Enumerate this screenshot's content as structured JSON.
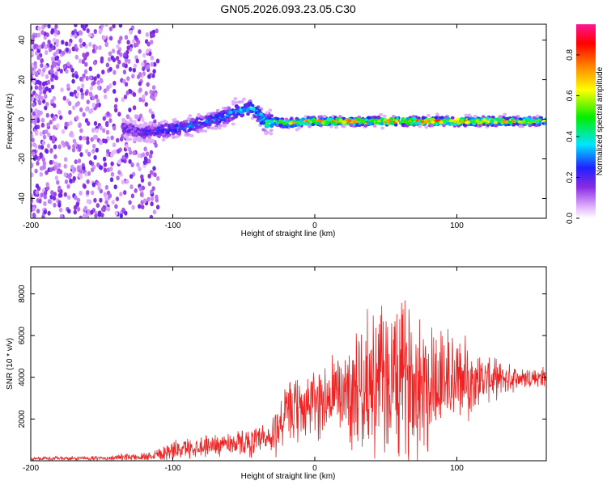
{
  "chart_data": [
    {
      "type": "heatmap",
      "title": "GN05.2026.093.23.05.C30",
      "xlabel": "Height of straight line (km)",
      "ylabel": "Frequency (Hz)",
      "xlim": [
        -200,
        163
      ],
      "ylim": [
        -50,
        48
      ],
      "x_ticks": [
        "-200",
        "-100",
        "0",
        "100"
      ],
      "y_ticks": [
        "40",
        "20",
        "0",
        "-20",
        "-40"
      ],
      "x_tick_values": [
        -200,
        -100,
        0,
        100
      ],
      "y_tick_values": [
        40,
        20,
        0,
        -20,
        -40
      ],
      "colorbar": {
        "label": "Normalized spectral amplitude",
        "range": [
          0,
          0.95
        ],
        "ticks": [
          "0.0",
          "0.2",
          "0.4",
          "0.6",
          "0.8"
        ],
        "tick_values": [
          0.0,
          0.2,
          0.4,
          0.6,
          0.8
        ],
        "colormap": "rainbow"
      },
      "trace_frequency": [
        [
          -135,
          -4
        ],
        [
          -120,
          -7
        ],
        [
          -100,
          -5
        ],
        [
          -80,
          -2
        ],
        [
          -65,
          1
        ],
        [
          -55,
          4
        ],
        [
          -45,
          6
        ],
        [
          -40,
          3
        ],
        [
          -35,
          -2
        ],
        [
          -30,
          -1
        ],
        [
          -20,
          -2
        ],
        [
          0,
          -1
        ],
        [
          50,
          -1
        ],
        [
          100,
          -1
        ],
        [
          163,
          -1
        ]
      ],
      "trace_amplitude": [
        [
          -135,
          0.2
        ],
        [
          -100,
          0.3
        ],
        [
          -60,
          0.35
        ],
        [
          -40,
          0.4
        ],
        [
          -30,
          0.6
        ],
        [
          -10,
          0.75
        ],
        [
          10,
          0.85
        ],
        [
          50,
          0.8
        ],
        [
          100,
          0.85
        ],
        [
          140,
          0.75
        ],
        [
          163,
          0.6
        ]
      ],
      "noise_region_x": [
        -200,
        -110
      ],
      "grid": false
    },
    {
      "type": "line",
      "xlabel": "Height of straight line (km)",
      "ylabel": "SNR (10 * v/v)",
      "xlim": [
        -200,
        163
      ],
      "ylim": [
        0,
        9300
      ],
      "x_ticks": [
        "-200",
        "-100",
        "0",
        "100"
      ],
      "y_ticks": [
        "8000",
        "6000",
        "4000",
        "2000"
      ],
      "x_tick_values": [
        -200,
        -100,
        0,
        100
      ],
      "y_tick_values": [
        8000,
        6000,
        4000,
        2000
      ],
      "color": "#ee2222",
      "envelope": {
        "x": [
          -200,
          -150,
          -120,
          -110,
          -100,
          -80,
          -60,
          -40,
          -30,
          -25,
          -20,
          -10,
          0,
          10,
          20,
          30,
          40,
          50,
          60,
          70,
          80,
          90,
          100,
          110,
          120,
          140,
          163
        ],
        "base": [
          100,
          120,
          200,
          350,
          500,
          700,
          850,
          900,
          1000,
          1800,
          2200,
          2500,
          2800,
          3000,
          3300,
          3500,
          3700,
          3800,
          3900,
          3950,
          3900,
          3900,
          3850,
          3900,
          3900,
          3950,
          4000
        ],
        "amp": [
          90,
          100,
          200,
          350,
          450,
          500,
          550,
          700,
          1100,
          1400,
          1500,
          1600,
          1700,
          2000,
          2300,
          2800,
          3400,
          3800,
          3800,
          3700,
          3400,
          2800,
          2300,
          1600,
          1100,
          600,
          500
        ]
      },
      "grid": false
    }
  ]
}
